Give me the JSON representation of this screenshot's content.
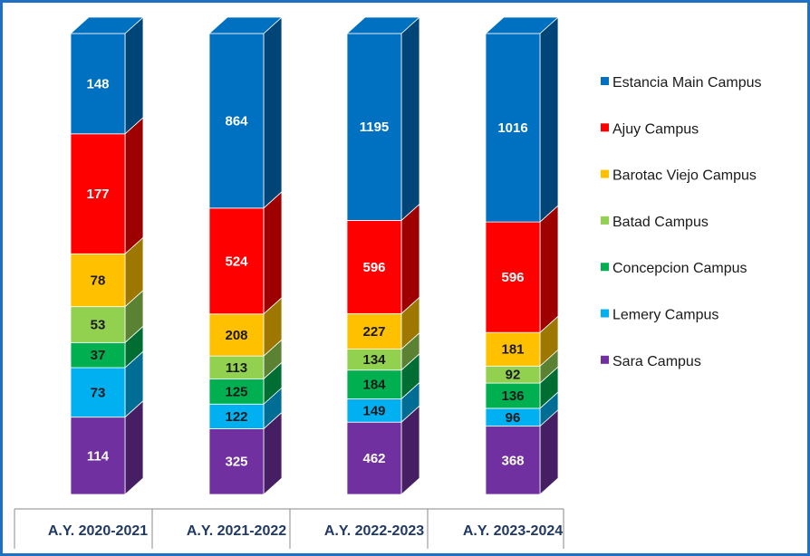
{
  "chart_data": {
    "type": "bar",
    "stacked": true,
    "categories": [
      "A.Y. 2020-2021",
      "A.Y. 2021-2022",
      "A.Y. 2022-2023",
      "A.Y. 2023-2024"
    ],
    "series": [
      {
        "name": "Sara Campus",
        "color": "#7030A0",
        "label_color": "#ffffff",
        "values": [
          114,
          325,
          462,
          368
        ]
      },
      {
        "name": "Lemery Campus",
        "color": "#00B0F0",
        "label_color": "#1a1a1a",
        "values": [
          73,
          122,
          149,
          96
        ]
      },
      {
        "name": "Concepcion Campus",
        "color": "#00B050",
        "label_color": "#1a1a1a",
        "values": [
          37,
          125,
          184,
          136
        ]
      },
      {
        "name": "Batad Campus",
        "color": "#92D050",
        "label_color": "#1a1a1a",
        "values": [
          53,
          113,
          134,
          92
        ]
      },
      {
        "name": "Barotac Viejo Campus",
        "color": "#FFC000",
        "label_color": "#1a1a1a",
        "values": [
          78,
          208,
          227,
          181
        ]
      },
      {
        "name": "Ajuy Campus",
        "color": "#FF0000",
        "label_color": "#ffffff",
        "values": [
          177,
          524,
          596,
          596
        ]
      },
      {
        "name": "Estancia Main Campus",
        "color": "#0070C0",
        "label_color": "#ffffff",
        "values": [
          148,
          864,
          1195,
          1016
        ]
      }
    ],
    "legend_position": "right",
    "legend_order": [
      "Estancia Main Campus",
      "Ajuy Campus",
      "Barotac Viejo Campus",
      "Batad Campus",
      "Concepcion Campus",
      "Lemery Campus",
      "Sara Campus"
    ],
    "normalized_to_equal_height": true,
    "title": "",
    "xlabel": "",
    "ylabel": "",
    "grid": false,
    "frame_color": "#1F6FC4"
  }
}
